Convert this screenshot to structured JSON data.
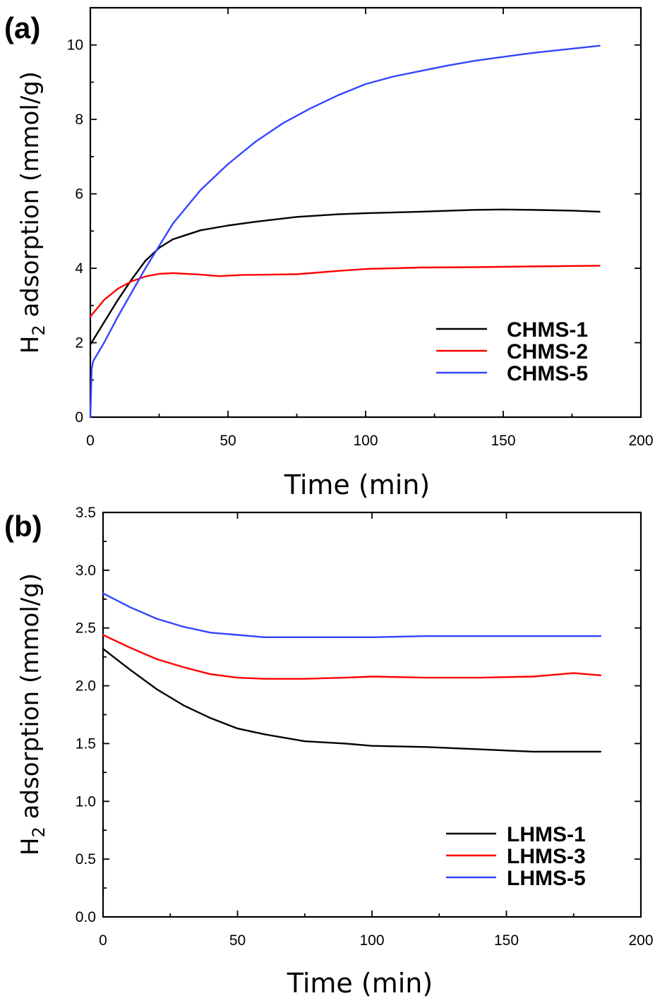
{
  "chart_data": [
    {
      "type": "line",
      "panel_label": "(a)",
      "xlabel": "Time (min)",
      "ylabel": {
        "prefix": "H",
        "sub": "2",
        "rest": " adsorption (mmol/g)"
      },
      "xlim": [
        0,
        200
      ],
      "ylim": [
        0,
        11
      ],
      "xticks": [
        0,
        50,
        100,
        150,
        200
      ],
      "yticks": [
        0,
        2,
        4,
        6,
        8,
        10
      ],
      "legend_position": "bottom-right",
      "series": [
        {
          "name": "CHMS-1",
          "color": "#000000",
          "x": [
            0,
            5,
            10,
            15,
            20,
            25,
            30,
            40,
            50,
            60,
            75,
            90,
            100,
            120,
            140,
            150,
            160,
            175,
            185
          ],
          "y": [
            1.95,
            2.55,
            3.15,
            3.7,
            4.2,
            4.55,
            4.78,
            5.02,
            5.15,
            5.25,
            5.38,
            5.45,
            5.48,
            5.52,
            5.57,
            5.58,
            5.57,
            5.55,
            5.52
          ]
        },
        {
          "name": "CHMS-2",
          "color": "#ff0000",
          "x": [
            0,
            5,
            10,
            15,
            20,
            25,
            30,
            40,
            47,
            55,
            75,
            90,
            100,
            120,
            140,
            160,
            185
          ],
          "y": [
            2.7,
            3.15,
            3.45,
            3.65,
            3.78,
            3.85,
            3.87,
            3.83,
            3.79,
            3.82,
            3.84,
            3.93,
            3.98,
            4.02,
            4.03,
            4.05,
            4.07
          ]
        },
        {
          "name": "CHMS-5",
          "color": "#3344ff",
          "x": [
            0,
            0.5,
            1,
            5,
            10,
            20,
            30,
            40,
            50,
            60,
            70,
            80,
            90,
            100,
            110,
            120,
            130,
            140,
            150,
            160,
            170,
            185
          ],
          "y": [
            0,
            1.3,
            1.5,
            2.0,
            2.7,
            4.0,
            5.2,
            6.1,
            6.8,
            7.4,
            7.9,
            8.3,
            8.65,
            8.95,
            9.15,
            9.3,
            9.45,
            9.58,
            9.68,
            9.78,
            9.86,
            9.98
          ]
        }
      ]
    },
    {
      "type": "line",
      "panel_label": "(b)",
      "xlabel": "Time (min)",
      "ylabel": {
        "prefix": "H",
        "sub": "2",
        "rest": " adsorption (mmol/g)"
      },
      "xlim": [
        0,
        200
      ],
      "ylim": [
        0,
        3.5
      ],
      "xticks": [
        0,
        50,
        100,
        150,
        200
      ],
      "yticks": [
        "0.0",
        "0.5",
        "1.0",
        "1.5",
        "2.0",
        "2.5",
        "3.0",
        "3.5"
      ],
      "legend_position": "bottom-right",
      "series": [
        {
          "name": "LHMS-1",
          "color": "#000000",
          "x": [
            0,
            10,
            20,
            30,
            40,
            50,
            60,
            75,
            90,
            100,
            120,
            140,
            150,
            160,
            185
          ],
          "y": [
            2.32,
            2.14,
            1.97,
            1.83,
            1.72,
            1.63,
            1.58,
            1.52,
            1.5,
            1.48,
            1.47,
            1.45,
            1.44,
            1.43,
            1.43
          ]
        },
        {
          "name": "LHMS-3",
          "color": "#ff0000",
          "x": [
            0,
            10,
            20,
            30,
            40,
            50,
            60,
            75,
            90,
            100,
            120,
            140,
            160,
            175,
            185
          ],
          "y": [
            2.44,
            2.33,
            2.23,
            2.16,
            2.1,
            2.07,
            2.06,
            2.06,
            2.07,
            2.08,
            2.07,
            2.07,
            2.08,
            2.11,
            2.09
          ]
        },
        {
          "name": "LHMS-5",
          "color": "#3344ff",
          "x": [
            0,
            10,
            20,
            30,
            40,
            50,
            60,
            75,
            90,
            100,
            120,
            140,
            160,
            185
          ],
          "y": [
            2.8,
            2.68,
            2.58,
            2.51,
            2.46,
            2.44,
            2.42,
            2.42,
            2.42,
            2.42,
            2.43,
            2.43,
            2.43,
            2.43
          ]
        }
      ]
    }
  ]
}
